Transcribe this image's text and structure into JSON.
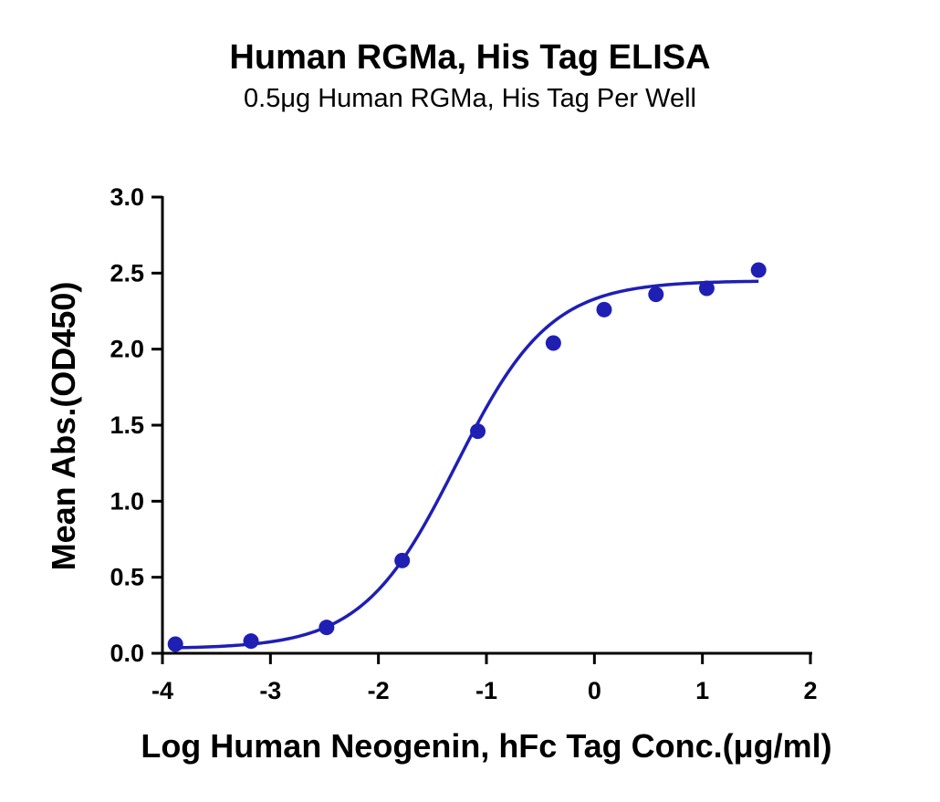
{
  "chart_data": {
    "type": "scatter",
    "title": "Human RGMa, His Tag ELISA",
    "subtitle": "0.5μg Human RGMa, His Tag Per Well",
    "xlabel": "Log Human Neogenin, hFc Tag Conc.(μg/ml)",
    "ylabel": "Mean Abs.(OD450)",
    "xlim": [
      -4,
      2
    ],
    "ylim": [
      0,
      3
    ],
    "x_ticks": [
      "-4",
      "-3",
      "-2",
      "-1",
      "0",
      "1",
      "2"
    ],
    "y_ticks": [
      "0.0",
      "0.5",
      "1.0",
      "1.5",
      "2.0",
      "2.5",
      "3.0"
    ],
    "grid": false,
    "series": [
      {
        "color": "#1f1fb4",
        "x": [
          -3.88,
          -3.18,
          -2.48,
          -1.78,
          -1.08,
          -0.38,
          0.09,
          0.57,
          1.04,
          1.52
        ],
        "y": [
          0.06,
          0.08,
          0.17,
          0.61,
          1.46,
          2.04,
          2.26,
          2.36,
          2.4,
          2.52
        ]
      }
    ],
    "fit_curve": {
      "model": "4PL",
      "color": "#1f1fb4",
      "bottom": 0.03,
      "top": 2.45,
      "logEC50": -1.28,
      "hill": 1.0
    }
  }
}
